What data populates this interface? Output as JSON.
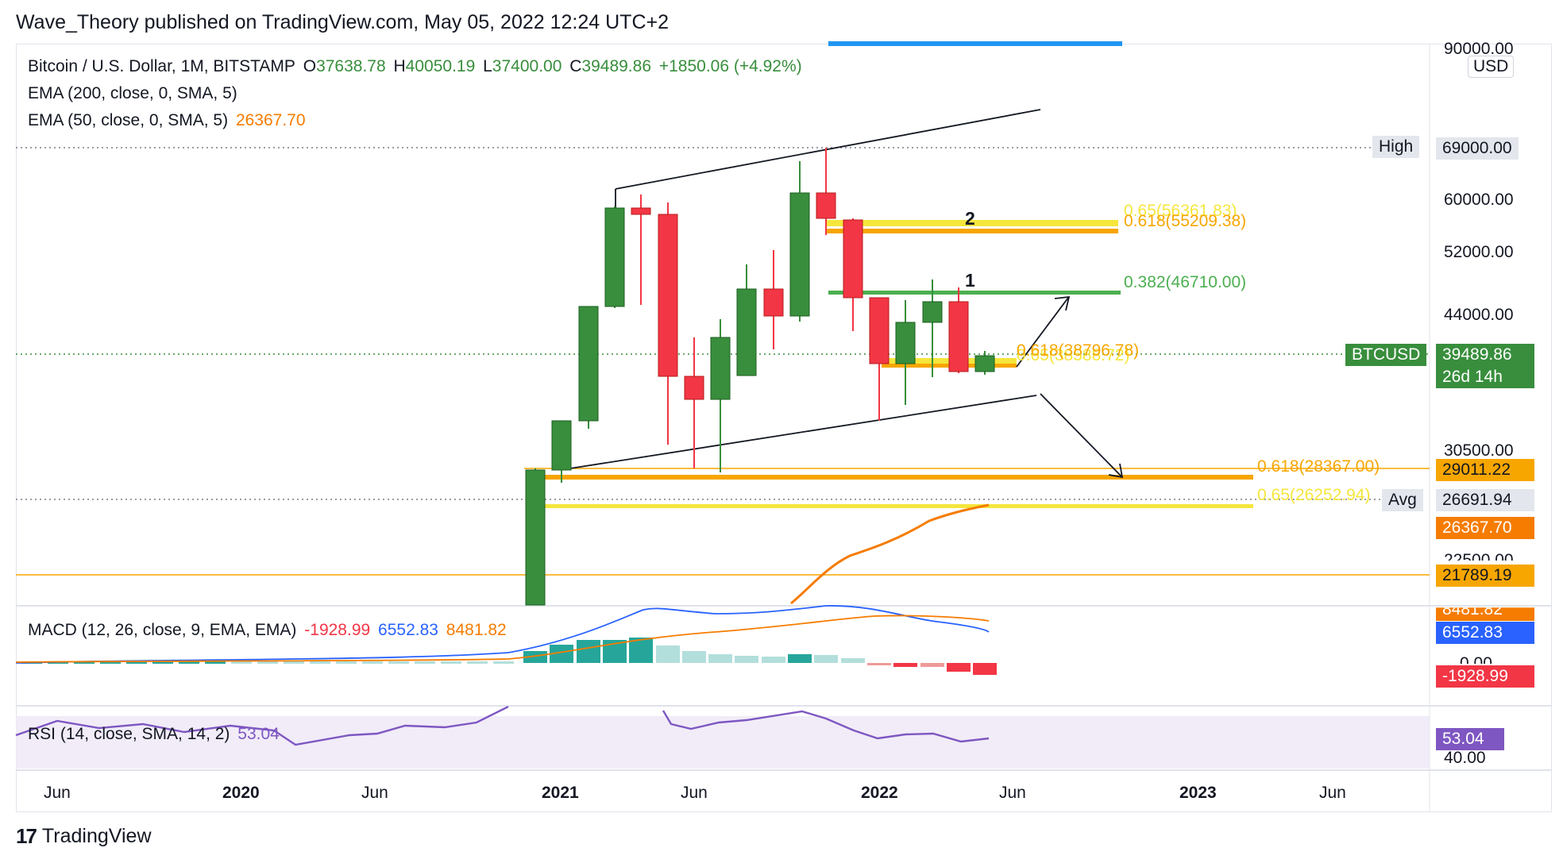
{
  "header": {
    "published": "Wave_Theory published on TradingView.com, May 05, 2022 12:24 UTC+2"
  },
  "legend": {
    "symbol": "Bitcoin / U.S. Dollar, 1M, BITSTAMP",
    "o_label": "O",
    "o": "37638.78",
    "h_label": "H",
    "h": "40050.19",
    "l_label": "L",
    "l": "37400.00",
    "c_label": "C",
    "c": "39489.86",
    "change": "+1850.06 (+4.92%)",
    "ema200": "EMA (200, close, 0, SMA, 5)",
    "ema50": "EMA (50, close, 0, SMA, 5)",
    "ema50_val": "26367.70"
  },
  "price_axis": {
    "currency": "USD",
    "ticks": [
      "90000.00",
      "69000.00",
      "60000.00",
      "52000.00",
      "44000.00",
      "30500.00",
      "22500.00"
    ],
    "high_label": "High",
    "high_val": "69000.00",
    "symbol_label": "BTCUSD",
    "last_price": "39489.86",
    "countdown": "26d 14h",
    "level_29011": "29011.22",
    "avg_label": "Avg",
    "avg_val": "26691.94",
    "ema50_val": "26367.70",
    "level_21789": "21789.19"
  },
  "annotations": {
    "fib_0382": "0.382(46710.00)",
    "fib_0618_top": "0.618(55209.38)",
    "fib_065_top": "0.65(56361.83)",
    "fib_0618_mid": "0.618(38796.78)",
    "fib_065_mid": "0.65(38588.72)",
    "fib_0618_low": "0.618(28367.00)",
    "fib_065_low": "0.65(26252.94)",
    "wave1": "1",
    "wave2": "2"
  },
  "macd": {
    "title": "MACD (12, 26, close, 9, EMA, EMA)",
    "hist": "-1928.99",
    "macd": "6552.83",
    "signal": "8481.82",
    "axis_macd": "6552.83",
    "axis_hist": "-1928.99",
    "axis_signal": "8481.82",
    "axis_zero": "0.00"
  },
  "rsi": {
    "title": "RSI (14, close, SMA, 14, 2)",
    "value": "53.04",
    "axis_value": "53.04",
    "axis_40": "40.00"
  },
  "time_axis": [
    "Jun",
    "2020",
    "Jun",
    "2021",
    "Jun",
    "2022",
    "Jun",
    "2023",
    "Jun"
  ],
  "footer": {
    "logo": "17",
    "brand": "TradingView"
  },
  "colors": {
    "up": "#388e3c",
    "down": "#f23645",
    "ema50": "#f57c00",
    "macd": "#2962ff",
    "fib_yellow": "#f5e63c",
    "fib_orange": "#f7a600",
    "fib_green": "#4caf50",
    "rsi": "#7e57c2"
  }
}
